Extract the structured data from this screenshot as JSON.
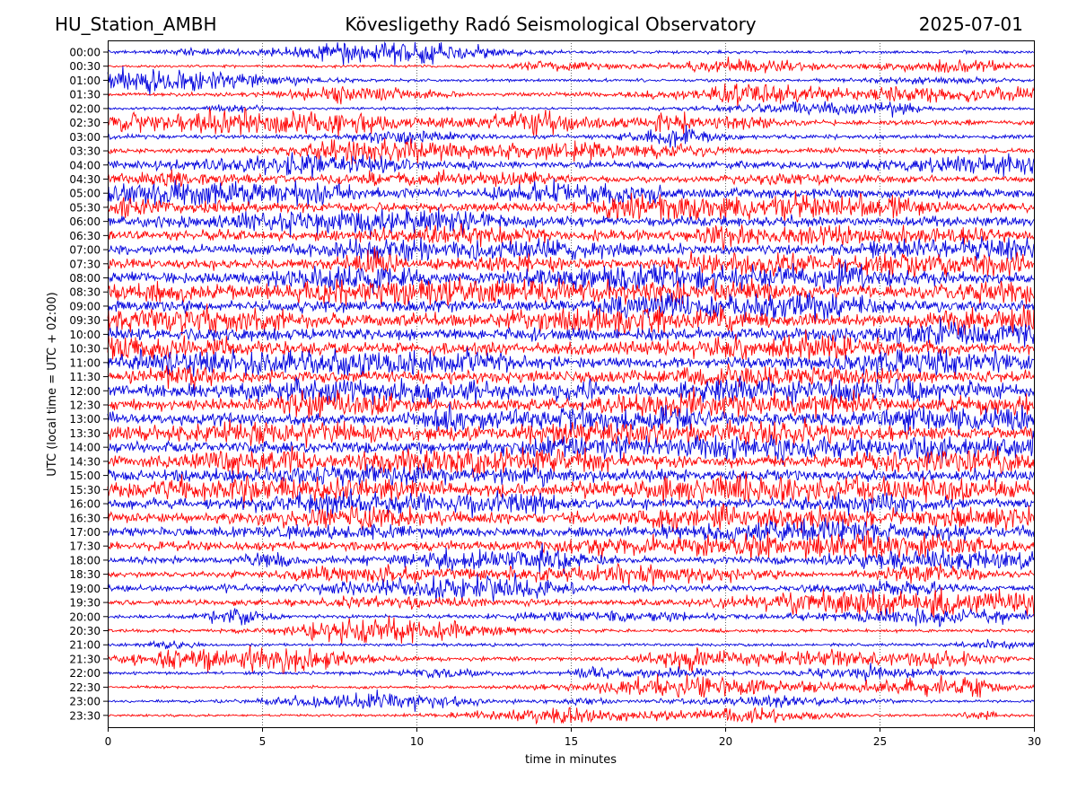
{
  "header": {
    "station": "HU_Station_AMBH",
    "title": "Kövesligethy Radó Seismological Observatory",
    "date": "2025-07-01"
  },
  "chart_data": {
    "type": "line",
    "title": "Kövesligethy Radó Seismological Observatory",
    "xlabel": "time in minutes",
    "ylabel": "UTC (local time = UTC + 02:00)",
    "xlim": [
      0,
      30
    ],
    "xticks": [
      0,
      5,
      10,
      15,
      20,
      25,
      30
    ],
    "grid_x": true,
    "row_labels": [
      "00:00",
      "00:30",
      "01:00",
      "01:30",
      "02:00",
      "02:30",
      "03:00",
      "03:30",
      "04:00",
      "04:30",
      "05:00",
      "05:30",
      "06:00",
      "06:30",
      "07:00",
      "07:30",
      "08:00",
      "08:30",
      "09:00",
      "09:30",
      "10:00",
      "10:30",
      "11:00",
      "11:30",
      "12:00",
      "12:30",
      "13:00",
      "13:30",
      "14:00",
      "14:30",
      "15:00",
      "15:30",
      "16:00",
      "16:30",
      "17:00",
      "17:30",
      "18:00",
      "18:30",
      "19:00",
      "19:30",
      "20:00",
      "20:30",
      "21:00",
      "21:30",
      "22:00",
      "22:30",
      "23:00",
      "23:30"
    ],
    "series_colors": [
      "#0000dd",
      "#ff0000"
    ],
    "activity_level": [
      0.12,
      0.1,
      0.12,
      0.2,
      0.1,
      0.35,
      0.25,
      0.35,
      0.55,
      0.45,
      0.7,
      0.75,
      0.85,
      0.85,
      0.85,
      0.85,
      0.9,
      1.0,
      1.0,
      1.0,
      1.0,
      1.0,
      1.0,
      1.0,
      1.0,
      1.0,
      1.0,
      1.0,
      1.0,
      1.0,
      1.0,
      1.0,
      0.85,
      0.85,
      0.8,
      0.7,
      0.45,
      0.35,
      0.45,
      0.35,
      0.18,
      0.14,
      0.12,
      0.2,
      0.18,
      0.1,
      0.08,
      0.07
    ]
  }
}
